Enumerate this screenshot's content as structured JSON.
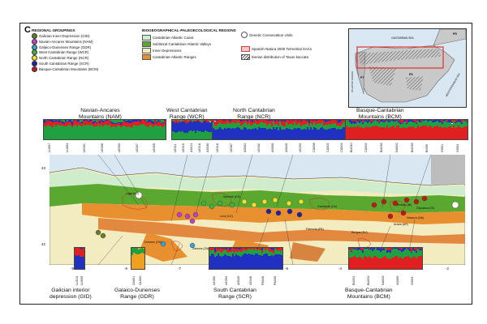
{
  "panel_letter": "C",
  "legend": {
    "groupings_title": "REGIONAL GROUPINGS",
    "groupings": [
      {
        "label": "Galician Inner Depression (GID)",
        "color": "#6b7a2a"
      },
      {
        "label": "Navian-Ancares Mountains (NAM)",
        "color": "#c040c0"
      },
      {
        "label": "Galaico-Durienses Range (GDR)",
        "color": "#40a0d0"
      },
      {
        "label": "West Cantabrian Range (WCR)",
        "color": "#40b040"
      },
      {
        "label": "North Cantabrian Range (NCR)",
        "color": "#f0e030"
      },
      {
        "label": "South Cantabrian Range (SCR)",
        "color": "#2020a0"
      },
      {
        "label": "Basque-Cantabrian Mountains (BCM)",
        "color": "#c01818"
      }
    ],
    "regions_title": "BIOGEOGRAPHICAL-PALEOECOLOGICAL REGIONS",
    "regions": [
      {
        "label": "Cantabrian-Atlantic Coast",
        "color": "#cfeccc"
      },
      {
        "label": "Sublitoral Cantabrian-Atlantic Valleys",
        "color": "#5aa830"
      },
      {
        "label": "Inner Depressions",
        "color": "#f2ecc0"
      },
      {
        "label": "Cantabrian-Atlantic Ranges",
        "color": "#e89030"
      }
    ],
    "other": [
      {
        "label": "Genetic Conservation Units",
        "kind": "circle"
      },
      {
        "label": "Spanish Natura 2000 Terrestrial SACs",
        "kind": "pink-box"
      },
      {
        "label": "Iberian distribution of Taxus baccata",
        "kind": "hatch"
      }
    ]
  },
  "inset": {
    "labels": [
      "FR",
      "PT",
      "ES",
      "CANTABRIAN SEA",
      "ATLANTIC OCEAN",
      "MEDITERRANEAN SEA"
    ]
  },
  "groups_top": [
    {
      "name": "Navian-Ancares\nMountains (NAM)",
      "sites": [
        "LU007",
        "LU003",
        "LE001",
        "LE006",
        "LE003",
        "LE007",
        "LE005"
      ]
    },
    {
      "name": "West Cantabrian\nRange (WCR)",
      "sites": [
        "LE011",
        "LE015",
        "AS014",
        "LE016",
        "AS030"
      ]
    },
    {
      "name": "North Cantabrian\nRange (NCR)",
      "sites": [
        "LE018",
        "LE067",
        "AS002",
        "LE032",
        "AS006",
        "AS026",
        "LE293",
        "CA008",
        "CA002",
        "CA004"
      ]
    },
    {
      "name": "Basque-Cantabrian\nMountains (BCM)",
      "sites": [
        "BU040",
        "CA002",
        "BU035",
        "NA002",
        "BU036",
        "BI009",
        "GI001",
        "GI004"
      ]
    }
  ],
  "groups_bottom": [
    {
      "name": "Galician interior\ndepression (GID)",
      "sites": [
        "LU010",
        "LU009"
      ]
    },
    {
      "name": "Galaico-Durienses\nRange (GDR)",
      "sites": [
        "ZA001",
        "OU001"
      ]
    },
    {
      "name": "South Cantabrian\nRange (SCR)",
      "sites": [
        "LE050",
        "LE053",
        "AS045",
        "LE046",
        "PA046",
        "PA039"
      ]
    },
    {
      "name": "Basque-Cantabrian\nMountains (BCM)",
      "sites": [
        "BU001",
        "BU004",
        "NA002",
        "AS005",
        "GI003"
      ]
    }
  ],
  "map": {
    "lat_ticks": [
      "43",
      "42"
    ],
    "lon_ticks": [
      "-9",
      "-8",
      "-7",
      "-6",
      "-5",
      "-4",
      "-3",
      "-2"
    ],
    "cities": [
      "Lugo (LU)",
      "Asturias (AS)",
      "León (LE)",
      "Cantabria (CA)",
      "Palencia (PA)",
      "Burgos (BU)",
      "Bizkaia (BI)",
      "Gipuzkoa (GI)",
      "Araba (AR)",
      "Navarra (NA)",
      "Ourense (OU)",
      "Zamora (ZA)"
    ]
  }
}
